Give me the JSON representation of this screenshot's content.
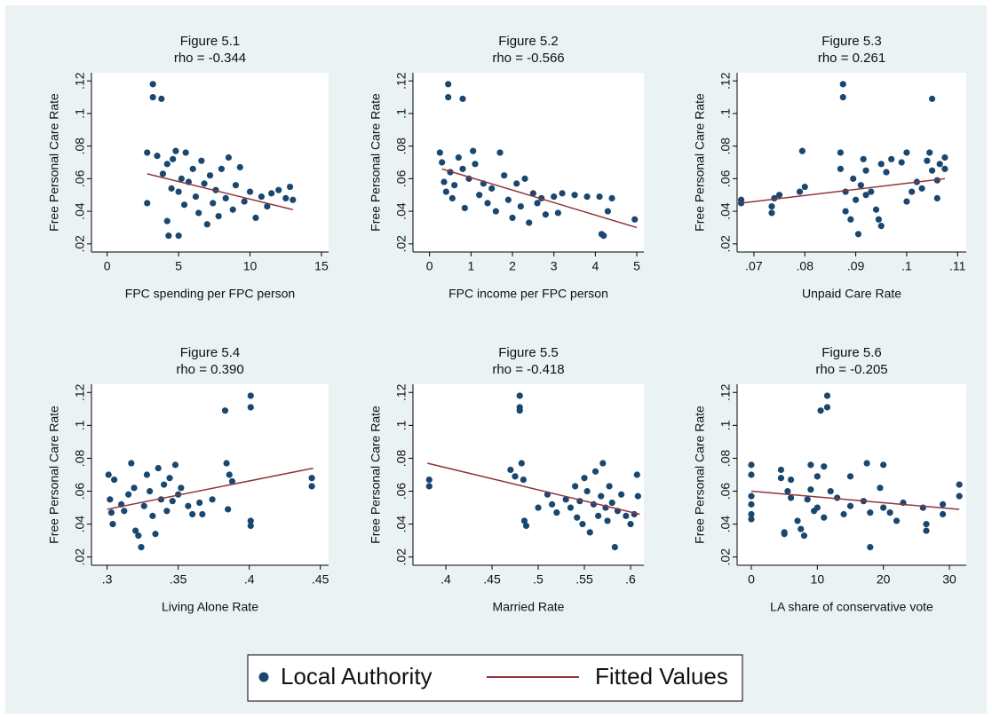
{
  "legend": [
    {
      "label": "Local Authority",
      "color": "#1a476f",
      "mark": "point"
    },
    {
      "label": "Fitted Values",
      "color": "#90353b",
      "mark": "line"
    }
  ],
  "chart_data": [
    {
      "type": "scatter",
      "title": "Figure 5.1",
      "subtitle": "rho =  -0.344",
      "xlabel": "FPC spending per FPC person",
      "ylabel": "Free Personal Care Rate",
      "xlim": [
        -1.1,
        15.5
      ],
      "xticks": [
        0,
        5,
        10,
        15
      ],
      "ylim": [
        0.015,
        0.125
      ],
      "yticks": [
        {
          "value": 0.02,
          "label": ".02"
        },
        {
          "value": 0.04,
          "label": ".04"
        },
        {
          "value": 0.06,
          "label": ".06"
        },
        {
          "value": 0.08,
          "label": ".08"
        },
        {
          "value": 0.1,
          "label": ".1"
        },
        {
          "value": 0.12,
          "label": ".12"
        }
      ],
      "series": [
        {
          "type": "scatter",
          "color": "#1a476f",
          "x": [
            3.2,
            3.2,
            3.8,
            2.8,
            2.8,
            3.5,
            3.9,
            4.2,
            4.2,
            4.3,
            4.5,
            4.6,
            4.8,
            5.0,
            5.0,
            5.2,
            5.4,
            5.5,
            5.7,
            6.0,
            6.2,
            6.4,
            6.6,
            6.8,
            7.0,
            7.2,
            7.4,
            7.6,
            7.8,
            8.0,
            8.3,
            8.5,
            8.8,
            9.0,
            9.3,
            9.6,
            10.0,
            10.4,
            10.8,
            11.2,
            11.5,
            12.0,
            12.5,
            12.8,
            13.0
          ],
          "values": [
            0.118,
            0.11,
            0.109,
            0.076,
            0.045,
            0.074,
            0.063,
            0.069,
            0.034,
            0.025,
            0.054,
            0.072,
            0.077,
            0.052,
            0.025,
            0.06,
            0.044,
            0.076,
            0.058,
            0.066,
            0.049,
            0.039,
            0.071,
            0.057,
            0.032,
            0.062,
            0.045,
            0.053,
            0.037,
            0.066,
            0.048,
            0.073,
            0.041,
            0.056,
            0.067,
            0.046,
            0.052,
            0.036,
            0.049,
            0.043,
            0.051,
            0.053,
            0.048,
            0.055,
            0.047
          ]
        },
        {
          "type": "line",
          "color": "#90353b",
          "x": [
            2.8,
            13.0
          ],
          "values": [
            0.063,
            0.041
          ]
        }
      ]
    },
    {
      "type": "scatter",
      "title": "Figure 5.2",
      "subtitle": "rho =  -0.566",
      "xlabel": "FPC income per FPC person",
      "ylabel": "Free Personal Care Rate",
      "xlim": [
        -0.4,
        5.17
      ],
      "xticks": [
        0,
        1,
        2,
        3,
        4,
        5
      ],
      "ylim": [
        0.015,
        0.125
      ],
      "yticks": [
        {
          "value": 0.02,
          "label": ".02"
        },
        {
          "value": 0.04,
          "label": ".04"
        },
        {
          "value": 0.06,
          "label": ".06"
        },
        {
          "value": 0.08,
          "label": ".08"
        },
        {
          "value": 0.1,
          "label": ".1"
        },
        {
          "value": 0.12,
          "label": ".12"
        }
      ],
      "series": [
        {
          "type": "scatter",
          "color": "#1a476f",
          "x": [
            0.45,
            0.45,
            0.8,
            0.25,
            0.3,
            0.35,
            0.4,
            0.5,
            0.55,
            0.6,
            0.7,
            0.8,
            0.85,
            0.95,
            1.05,
            1.1,
            1.2,
            1.3,
            1.4,
            1.5,
            1.6,
            1.7,
            1.8,
            1.9,
            2.0,
            2.1,
            2.2,
            2.3,
            2.4,
            2.5,
            2.6,
            2.7,
            2.8,
            3.0,
            3.1,
            3.2,
            3.5,
            3.8,
            4.1,
            4.15,
            4.2,
            4.3,
            4.4,
            4.95
          ],
          "values": [
            0.118,
            0.11,
            0.109,
            0.076,
            0.07,
            0.058,
            0.052,
            0.064,
            0.048,
            0.056,
            0.073,
            0.066,
            0.042,
            0.06,
            0.077,
            0.069,
            0.05,
            0.057,
            0.045,
            0.054,
            0.04,
            0.076,
            0.062,
            0.047,
            0.036,
            0.057,
            0.043,
            0.06,
            0.033,
            0.051,
            0.045,
            0.048,
            0.038,
            0.049,
            0.039,
            0.051,
            0.05,
            0.049,
            0.049,
            0.026,
            0.025,
            0.04,
            0.048,
            0.035
          ]
        },
        {
          "type": "line",
          "color": "#90353b",
          "x": [
            0.3,
            5.0
          ],
          "values": [
            0.066,
            0.03
          ]
        }
      ]
    },
    {
      "type": "scatter",
      "title": "Figure 5.3",
      "subtitle": "rho = 0.261",
      "xlabel": "Unpaid Care Rate",
      "ylabel": "Free Personal Care Rate",
      "xlim": [
        0.0667,
        0.1117
      ],
      "xticks": [
        {
          "value": 0.07,
          "label": ".07"
        },
        {
          "value": 0.08,
          "label": ".08"
        },
        {
          "value": 0.09,
          "label": ".09"
        },
        {
          "value": 0.1,
          "label": ".1"
        },
        {
          "value": 0.11,
          "label": ".11"
        }
      ],
      "ylim": [
        0.015,
        0.125
      ],
      "yticks": [
        {
          "value": 0.02,
          "label": ".02"
        },
        {
          "value": 0.04,
          "label": ".04"
        },
        {
          "value": 0.06,
          "label": ".06"
        },
        {
          "value": 0.08,
          "label": ".08"
        },
        {
          "value": 0.1,
          "label": ".1"
        },
        {
          "value": 0.12,
          "label": ".12"
        }
      ],
      "series": [
        {
          "type": "scatter",
          "color": "#1a476f",
          "x": [
            0.0675,
            0.0675,
            0.0735,
            0.0735,
            0.074,
            0.075,
            0.079,
            0.0795,
            0.08,
            0.0875,
            0.0875,
            0.087,
            0.087,
            0.088,
            0.088,
            0.089,
            0.0895,
            0.09,
            0.0905,
            0.091,
            0.0915,
            0.092,
            0.092,
            0.093,
            0.094,
            0.0945,
            0.095,
            0.095,
            0.096,
            0.097,
            0.099,
            0.1,
            0.1,
            0.101,
            0.102,
            0.103,
            0.104,
            0.1045,
            0.105,
            0.105,
            0.106,
            0.106,
            0.1065,
            0.1075,
            0.1075
          ],
          "values": [
            0.047,
            0.045,
            0.043,
            0.039,
            0.048,
            0.05,
            0.052,
            0.077,
            0.055,
            0.118,
            0.11,
            0.076,
            0.066,
            0.052,
            0.04,
            0.035,
            0.06,
            0.047,
            0.026,
            0.056,
            0.072,
            0.05,
            0.065,
            0.052,
            0.041,
            0.035,
            0.069,
            0.031,
            0.064,
            0.072,
            0.07,
            0.076,
            0.046,
            0.052,
            0.058,
            0.054,
            0.071,
            0.076,
            0.109,
            0.065,
            0.059,
            0.048,
            0.069,
            0.073,
            0.066
          ]
        },
        {
          "type": "line",
          "color": "#90353b",
          "x": [
            0.0675,
            0.1075
          ],
          "values": [
            0.045,
            0.06
          ]
        }
      ]
    },
    {
      "type": "scatter",
      "title": "Figure 5.4",
      "subtitle": "rho = 0.390",
      "xlabel": "Living Alone Rate",
      "ylabel": "Free Personal Care Rate",
      "xlim": [
        0.289,
        0.4558
      ],
      "xticks": [
        {
          "value": 0.3,
          "label": ".3"
        },
        {
          "value": 0.35,
          "label": ".35"
        },
        {
          "value": 0.4,
          "label": ".4"
        },
        {
          "value": 0.45,
          "label": ".45"
        }
      ],
      "ylim": [
        0.015,
        0.125
      ],
      "yticks": [
        {
          "value": 0.02,
          "label": ".02"
        },
        {
          "value": 0.04,
          "label": ".04"
        },
        {
          "value": 0.06,
          "label": ".06"
        },
        {
          "value": 0.08,
          "label": ".08"
        },
        {
          "value": 0.1,
          "label": ".1"
        },
        {
          "value": 0.12,
          "label": ".12"
        }
      ],
      "series": [
        {
          "type": "scatter",
          "color": "#1a476f",
          "x": [
            0.301,
            0.302,
            0.303,
            0.304,
            0.305,
            0.31,
            0.312,
            0.315,
            0.317,
            0.319,
            0.32,
            0.322,
            0.324,
            0.326,
            0.328,
            0.33,
            0.332,
            0.334,
            0.336,
            0.338,
            0.34,
            0.342,
            0.344,
            0.346,
            0.348,
            0.35,
            0.352,
            0.357,
            0.36,
            0.365,
            0.367,
            0.374,
            0.383,
            0.384,
            0.385,
            0.386,
            0.388,
            0.401,
            0.401,
            0.401,
            0.401,
            0.444,
            0.444
          ],
          "values": [
            0.07,
            0.055,
            0.047,
            0.04,
            0.067,
            0.052,
            0.048,
            0.058,
            0.077,
            0.062,
            0.036,
            0.033,
            0.026,
            0.051,
            0.07,
            0.06,
            0.045,
            0.034,
            0.074,
            0.055,
            0.064,
            0.048,
            0.068,
            0.054,
            0.076,
            0.058,
            0.062,
            0.051,
            0.046,
            0.053,
            0.046,
            0.055,
            0.109,
            0.077,
            0.049,
            0.07,
            0.066,
            0.118,
            0.111,
            0.042,
            0.039,
            0.068,
            0.063
          ]
        },
        {
          "type": "line",
          "color": "#90353b",
          "x": [
            0.3,
            0.445
          ],
          "values": [
            0.049,
            0.074
          ]
        }
      ]
    },
    {
      "type": "scatter",
      "title": "Figure 5.5",
      "subtitle": "rho = -0.418",
      "xlabel": "Married Rate",
      "ylabel": "Free Personal Care Rate",
      "xlim": [
        0.3644,
        0.6144
      ],
      "xticks": [
        {
          "value": 0.4,
          "label": ".4"
        },
        {
          "value": 0.45,
          "label": ".45"
        },
        {
          "value": 0.5,
          "label": ".5"
        },
        {
          "value": 0.55,
          "label": ".55"
        },
        {
          "value": 0.6,
          "label": ".6"
        }
      ],
      "ylim": [
        0.015,
        0.125
      ],
      "yticks": [
        {
          "value": 0.02,
          "label": ".02"
        },
        {
          "value": 0.04,
          "label": ".04"
        },
        {
          "value": 0.06,
          "label": ".06"
        },
        {
          "value": 0.08,
          "label": ".08"
        },
        {
          "value": 0.1,
          "label": ".1"
        },
        {
          "value": 0.12,
          "label": ".12"
        }
      ],
      "series": [
        {
          "type": "scatter",
          "color": "#1a476f",
          "x": [
            0.382,
            0.382,
            0.47,
            0.475,
            0.48,
            0.48,
            0.48,
            0.482,
            0.484,
            0.485,
            0.487,
            0.5,
            0.51,
            0.515,
            0.52,
            0.53,
            0.535,
            0.54,
            0.542,
            0.545,
            0.548,
            0.55,
            0.553,
            0.556,
            0.56,
            0.562,
            0.565,
            0.568,
            0.57,
            0.573,
            0.575,
            0.577,
            0.58,
            0.583,
            0.586,
            0.59,
            0.595,
            0.6,
            0.604,
            0.607,
            0.608
          ],
          "values": [
            0.067,
            0.063,
            0.073,
            0.069,
            0.118,
            0.111,
            0.109,
            0.077,
            0.067,
            0.042,
            0.039,
            0.05,
            0.058,
            0.052,
            0.047,
            0.055,
            0.05,
            0.063,
            0.044,
            0.054,
            0.04,
            0.068,
            0.06,
            0.035,
            0.052,
            0.072,
            0.045,
            0.057,
            0.077,
            0.05,
            0.042,
            0.063,
            0.053,
            0.026,
            0.048,
            0.058,
            0.045,
            0.04,
            0.046,
            0.07,
            0.057
          ]
        },
        {
          "type": "line",
          "color": "#90353b",
          "x": [
            0.38,
            0.61
          ],
          "values": [
            0.077,
            0.046
          ]
        }
      ]
    },
    {
      "type": "scatter",
      "title": "Figure 5.6",
      "subtitle": "rho =  -0.205",
      "xlabel": "LA share of conservative vote",
      "ylabel": "Free Personal Care Rate",
      "xlim": [
        -2.15,
        32.55
      ],
      "xticks": [
        0,
        10,
        20,
        30
      ],
      "ylim": [
        0.015,
        0.125
      ],
      "yticks": [
        {
          "value": 0.02,
          "label": ".02"
        },
        {
          "value": 0.04,
          "label": ".04"
        },
        {
          "value": 0.06,
          "label": ".06"
        },
        {
          "value": 0.08,
          "label": ".08"
        },
        {
          "value": 0.1,
          "label": ".1"
        },
        {
          "value": 0.12,
          "label": ".12"
        }
      ],
      "series": [
        {
          "type": "scatter",
          "color": "#1a476f",
          "x": [
            0,
            0,
            0,
            0,
            0,
            0,
            4.5,
            4.5,
            5,
            5,
            5.5,
            6,
            6,
            7,
            7.5,
            8,
            8.5,
            9,
            9,
            9.5,
            10,
            10,
            10.5,
            11,
            11,
            11.5,
            11.5,
            12,
            13,
            14,
            15,
            15,
            17,
            17.5,
            18,
            18,
            19.5,
            20,
            20,
            21,
            22,
            23,
            26,
            26.5,
            26.5,
            29,
            29,
            31.5,
            31.5
          ],
          "values": [
            0.076,
            0.07,
            0.057,
            0.052,
            0.046,
            0.043,
            0.073,
            0.068,
            0.035,
            0.034,
            0.06,
            0.067,
            0.056,
            0.042,
            0.037,
            0.033,
            0.055,
            0.061,
            0.076,
            0.048,
            0.069,
            0.05,
            0.109,
            0.075,
            0.044,
            0.118,
            0.111,
            0.06,
            0.056,
            0.046,
            0.069,
            0.051,
            0.054,
            0.077,
            0.026,
            0.047,
            0.062,
            0.076,
            0.05,
            0.047,
            0.042,
            0.053,
            0.05,
            0.04,
            0.036,
            0.052,
            0.046,
            0.064,
            0.057
          ]
        },
        {
          "type": "line",
          "color": "#90353b",
          "x": [
            0,
            31.5
          ],
          "values": [
            0.06,
            0.049
          ]
        }
      ]
    }
  ]
}
